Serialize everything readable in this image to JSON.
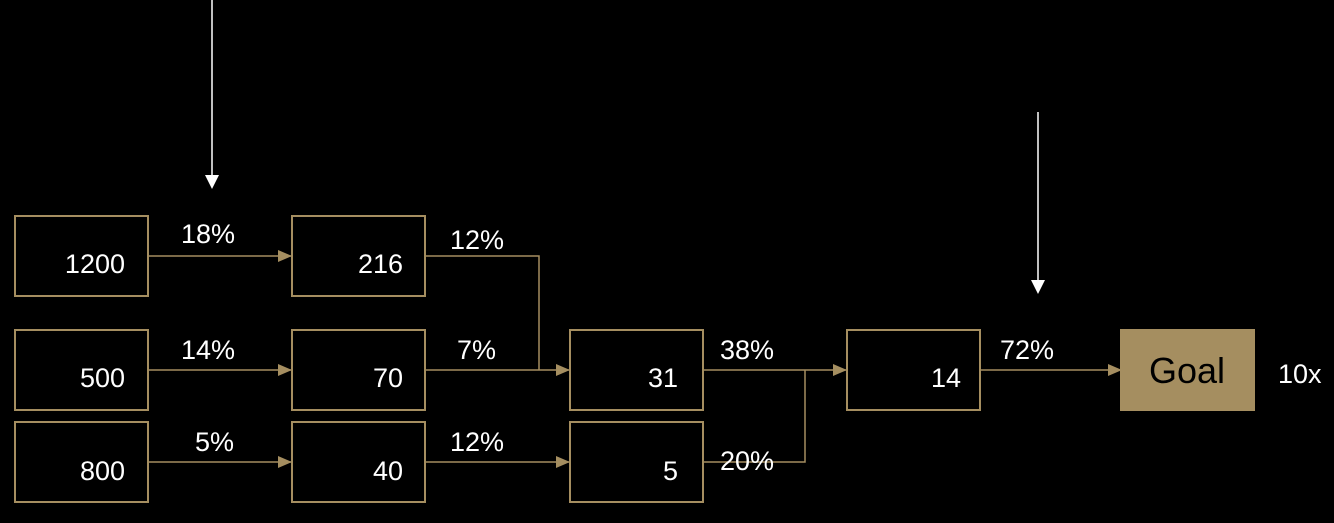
{
  "colors": {
    "background": "#000000",
    "accent": "#A58E60",
    "text": "#FFFFFF",
    "goal_text": "#000000",
    "marker": "#FFFFFF"
  },
  "nodes": {
    "a1": "1200",
    "a2": "500",
    "a3": "800",
    "b1": "216",
    "b2": "70",
    "b3": "40",
    "c1": "31",
    "c2": "5",
    "d1": "14",
    "goal": "Goal"
  },
  "rates": {
    "a1_b1": "18%",
    "a2_b2": "14%",
    "a3_b3": "5%",
    "b1_c1": "12%",
    "b2_c1": "7%",
    "b3_c2": "12%",
    "c1_d1": "38%",
    "c2_d1": "20%",
    "d1_goal": "72%"
  },
  "multiplier": "10x",
  "icons": {
    "marker_left": "down-arrow-icon",
    "marker_right": "down-arrow-icon"
  }
}
